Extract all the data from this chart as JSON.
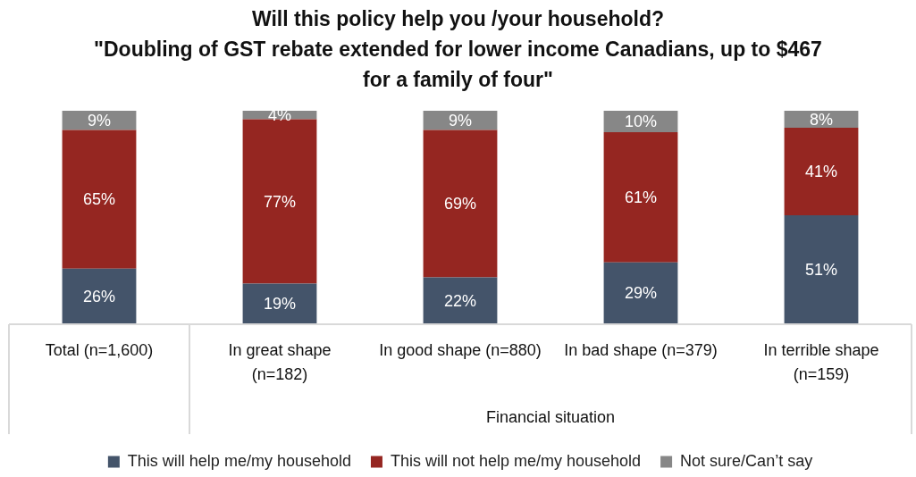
{
  "chart_data": {
    "type": "bar",
    "stacked": true,
    "title": "Will this policy help you /your household?",
    "subtitle": "\"Doubling of GST rebate extended for lower income Canadians, up to $467 for a family of four\"",
    "categories": [
      "Total (n=1,600)",
      "In great shape (n=182)",
      "In good shape (n=880)",
      "In bad shape (n=379)",
      "In terrible shape (n=159)"
    ],
    "series": [
      {
        "name": "This will help me/my household",
        "color": "#44546a",
        "values": [
          26,
          19,
          22,
          29,
          51
        ],
        "value_labels": [
          "26%",
          "19%",
          "22%",
          "29%",
          "51%"
        ]
      },
      {
        "name": "This will not help me/my household",
        "color": "#952621",
        "values": [
          65,
          77,
          69,
          61,
          41
        ],
        "value_labels": [
          "65%",
          "77%",
          "69%",
          "61%",
          "41%"
        ]
      },
      {
        "name": "Not sure/Can’t say",
        "color": "#878787",
        "values": [
          9,
          4,
          9,
          10,
          8
        ],
        "value_labels": [
          "9%",
          "4%",
          "9%",
          "10%",
          "8%"
        ]
      }
    ],
    "tick_labels": "x",
    "legend": "bottom",
    "grid": false,
    "annotations": [
      "Financial situation"
    ]
  }
}
